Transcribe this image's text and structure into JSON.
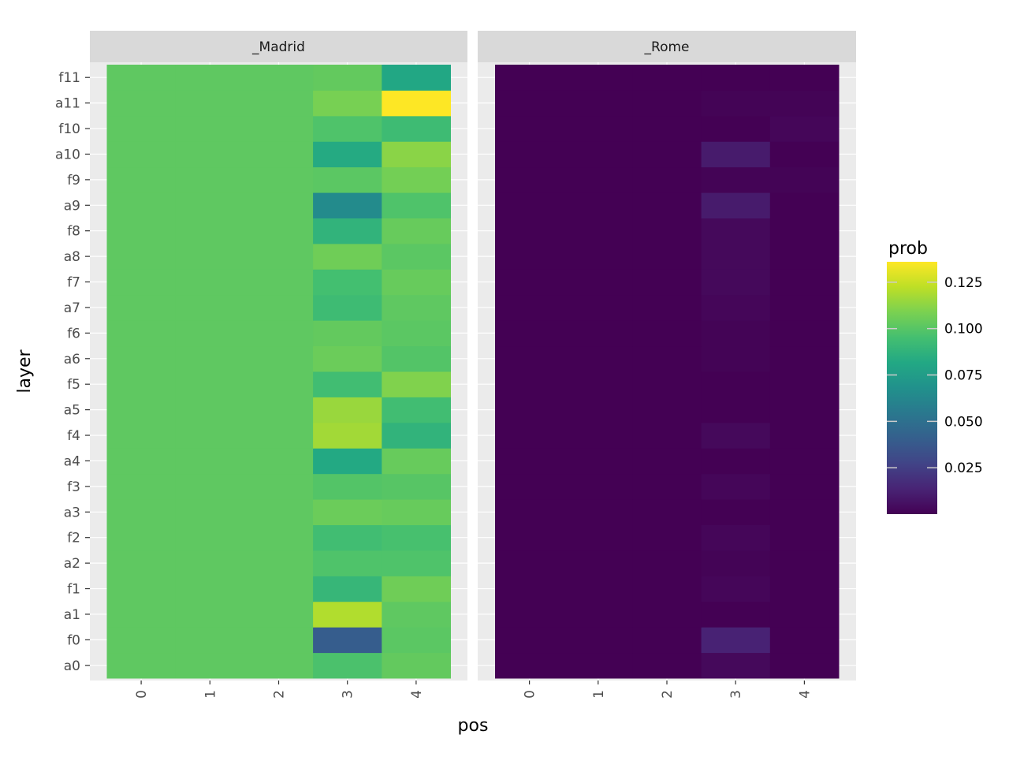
{
  "chart_data": {
    "type": "heatmap",
    "xlabel": "pos",
    "ylabel": "layer",
    "x": [
      "0",
      "1",
      "2",
      "3",
      "4"
    ],
    "y": [
      "a0",
      "f0",
      "a1",
      "f1",
      "a2",
      "f2",
      "a3",
      "f3",
      "a4",
      "f4",
      "a5",
      "f5",
      "a6",
      "f6",
      "a7",
      "f7",
      "a8",
      "f8",
      "a9",
      "f9",
      "a10",
      "f10",
      "a11",
      "f11"
    ],
    "facets": [
      {
        "name": "_Madrid",
        "values": [
          [
            0.102,
            0.102,
            0.102,
            0.097,
            0.103
          ],
          [
            0.102,
            0.102,
            0.102,
            0.04,
            0.101
          ],
          [
            0.102,
            0.102,
            0.102,
            0.12,
            0.102
          ],
          [
            0.102,
            0.102,
            0.102,
            0.09,
            0.106
          ],
          [
            0.102,
            0.102,
            0.102,
            0.098,
            0.098
          ],
          [
            0.102,
            0.102,
            0.102,
            0.094,
            0.096
          ],
          [
            0.102,
            0.102,
            0.102,
            0.105,
            0.104
          ],
          [
            0.102,
            0.102,
            0.102,
            0.099,
            0.1
          ],
          [
            0.102,
            0.102,
            0.102,
            0.082,
            0.104
          ],
          [
            0.102,
            0.102,
            0.102,
            0.117,
            0.088
          ],
          [
            0.102,
            0.102,
            0.102,
            0.115,
            0.094
          ],
          [
            0.102,
            0.102,
            0.102,
            0.094,
            0.11
          ],
          [
            0.102,
            0.102,
            0.102,
            0.105,
            0.099
          ],
          [
            0.102,
            0.102,
            0.102,
            0.103,
            0.101
          ],
          [
            0.102,
            0.102,
            0.102,
            0.093,
            0.102
          ],
          [
            0.102,
            0.102,
            0.102,
            0.095,
            0.104
          ],
          [
            0.102,
            0.102,
            0.102,
            0.106,
            0.101
          ],
          [
            0.102,
            0.102,
            0.102,
            0.088,
            0.104
          ],
          [
            0.102,
            0.102,
            0.102,
            0.065,
            0.098
          ],
          [
            0.102,
            0.102,
            0.102,
            0.101,
            0.107
          ],
          [
            0.102,
            0.102,
            0.102,
            0.083,
            0.112
          ],
          [
            0.102,
            0.102,
            0.102,
            0.098,
            0.093
          ],
          [
            0.102,
            0.102,
            0.102,
            0.108,
            0.136
          ],
          [
            0.102,
            0.102,
            0.102,
            0.103,
            0.081
          ]
        ]
      },
      {
        "name": "_Rome",
        "values": [
          [
            0.0,
            0.0,
            0.0,
            0.003,
            0.0
          ],
          [
            0.0,
            0.0,
            0.0,
            0.013,
            0.0
          ],
          [
            0.0,
            0.0,
            0.0,
            0.0,
            0.0
          ],
          [
            0.0,
            0.0,
            0.0,
            0.002,
            0.0
          ],
          [
            0.0,
            0.0,
            0.0,
            0.001,
            0.0
          ],
          [
            0.0,
            0.0,
            0.0,
            0.002,
            0.0
          ],
          [
            0.0,
            0.0,
            0.0,
            0.0,
            0.0
          ],
          [
            0.0,
            0.0,
            0.0,
            0.002,
            0.0
          ],
          [
            0.0,
            0.0,
            0.0,
            0.0,
            0.0
          ],
          [
            0.0,
            0.0,
            0.0,
            0.003,
            0.0
          ],
          [
            0.0,
            0.0,
            0.0,
            0.0,
            0.0
          ],
          [
            0.0,
            0.0,
            0.0,
            0.0,
            0.0
          ],
          [
            0.0,
            0.0,
            0.0,
            0.001,
            0.0
          ],
          [
            0.0,
            0.0,
            0.0,
            0.001,
            0.0
          ],
          [
            0.0,
            0.0,
            0.0,
            0.002,
            0.0
          ],
          [
            0.0,
            0.0,
            0.0,
            0.003,
            0.0
          ],
          [
            0.0,
            0.0,
            0.0,
            0.003,
            0.0
          ],
          [
            0.0,
            0.0,
            0.0,
            0.003,
            0.0
          ],
          [
            0.0,
            0.0,
            0.0,
            0.01,
            0.0
          ],
          [
            0.0,
            0.0,
            0.0,
            0.001,
            0.001
          ],
          [
            0.0,
            0.0,
            0.0,
            0.01,
            0.0
          ],
          [
            0.0,
            0.0,
            0.0,
            0.0,
            0.002
          ],
          [
            0.0,
            0.0,
            0.0,
            0.001,
            0.001
          ],
          [
            0.0,
            0.0,
            0.0,
            0.0,
            0.0
          ]
        ]
      }
    ],
    "legend": {
      "title": "prob",
      "position": "right",
      "ticks": [
        0.025,
        0.05,
        0.075,
        0.1,
        0.125
      ],
      "tick_labels": [
        "0.025",
        "0.050",
        "0.075",
        "0.100",
        "0.125"
      ],
      "range": [
        0.0,
        0.136
      ]
    },
    "colorscale": "viridis",
    "colors": {
      "panel_background": "#ebebeb",
      "strip_background": "#d9d9d9",
      "grid": "#ffffff",
      "tick_mark": "#333333",
      "legend_tick": "#cccccc"
    }
  }
}
